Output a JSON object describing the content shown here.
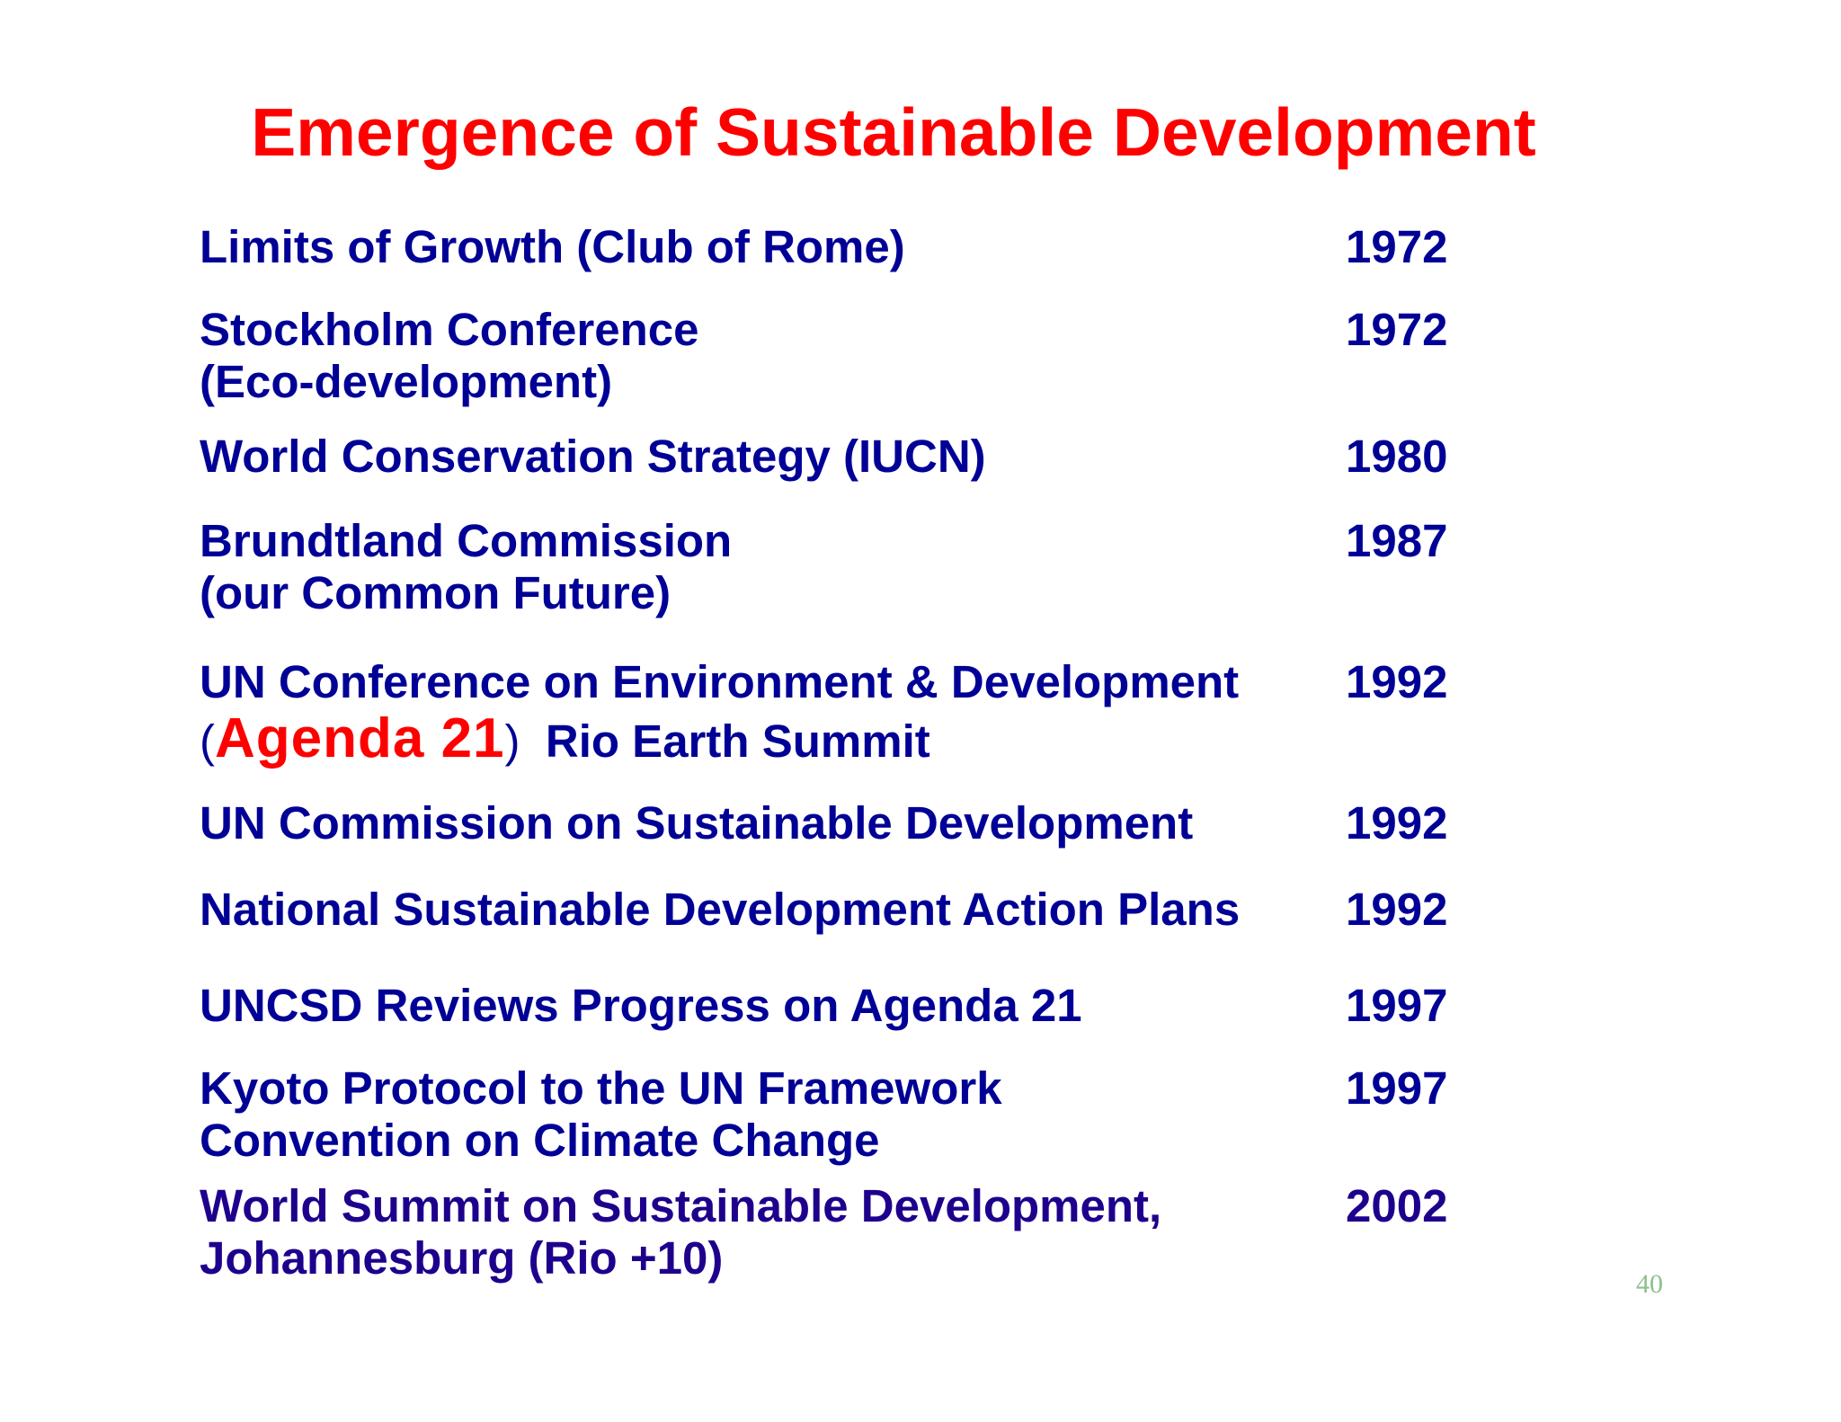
{
  "slide": {
    "title": "Emergence of Sustainable Development",
    "page_number": "40",
    "accent_color": "#ff0000",
    "text_color": "#000096"
  },
  "entries": [
    {
      "line1": "Limits of Growth (Club of Rome)",
      "line2": "",
      "year": "1972"
    },
    {
      "line1": "Stockholm Conference",
      "line2": "(Eco-development)",
      "year": "1972"
    },
    {
      "line1": "World Conservation Strategy (IUCN)",
      "line2": "",
      "year": "1980"
    },
    {
      "line1": "Brundtland Commission",
      "line2": "(our Common Future)",
      "year": "1987"
    },
    {
      "line1": "UN Conference on Environment & Development",
      "line2_open": "(",
      "line2_highlight": "Agenda 21",
      "line2_close": ")",
      "line2_rest": "Rio Earth Summit",
      "year": "1992"
    },
    {
      "line1": "UN Commission on Sustainable Development",
      "line2": "",
      "year": "1992"
    },
    {
      "line1": "National Sustainable Development Action Plans",
      "line2": "",
      "year": "1992"
    },
    {
      "line1": "UNCSD Reviews Progress on Agenda 21",
      "line2": "",
      "year": "1997"
    },
    {
      "line1": "Kyoto Protocol to the UN Framework",
      "line2": "Convention on Climate Change",
      "year": "1997"
    },
    {
      "line1": "World Summit on Sustainable Development,",
      "line2": "Johannesburg (Rio +10)",
      "year": "2002"
    }
  ]
}
